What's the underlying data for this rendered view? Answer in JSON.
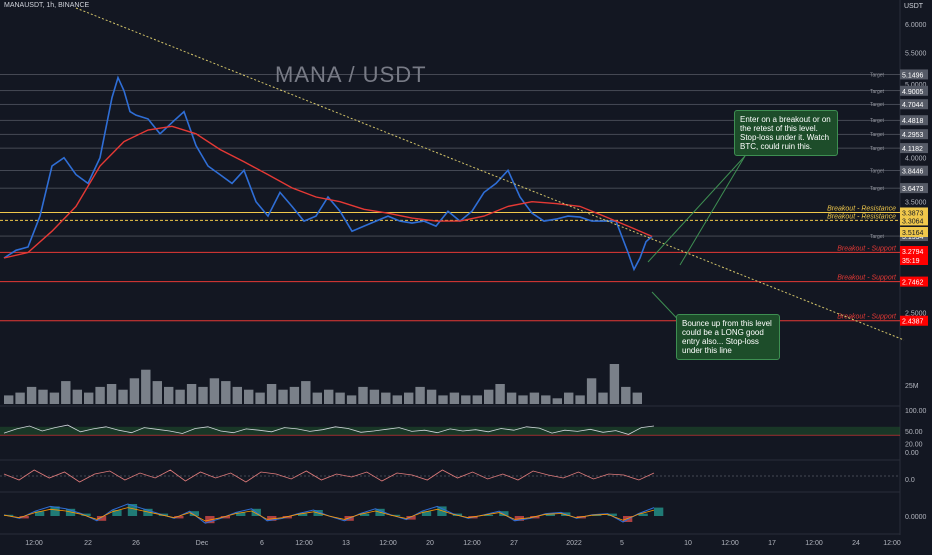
{
  "header": {
    "symbol": "MANAUSDT, 1h, BINANCE",
    "currency": "USDT"
  },
  "watermark": "MANA / USDT",
  "annotations": {
    "note_resistance": "Enter on a breakout or on the retest of this level. Stop-loss under it. Watch BTC, could ruin this.",
    "note_support": "Bounce up from this level could be a LONG good entry also... Stop-loss under this line"
  },
  "colors": {
    "background": "#131722",
    "price": "#2f6ed6",
    "ema": "#e53935",
    "resistance": "#f0c84b",
    "support": "#e53935",
    "trendline": "#d4c56a",
    "note_bg": "#1d4d2a",
    "target_line": "#787b86",
    "price_tag": "#ff0000",
    "label_tag": "#555a66",
    "volume_bars": "#7a8089",
    "rsi": "#d1d4dc",
    "osc": "#e07b7b",
    "macd_line": "#2f6ed6",
    "signal": "#ff9800"
  },
  "chart_data": [
    {
      "type": "line",
      "name": "price",
      "y_scale": "log",
      "ylim": [
        2.1,
        6.3
      ],
      "y_tick_labels": [
        "6.0000",
        "5.5000",
        "5.0000",
        "4.5000",
        "4.0000",
        "3.5000",
        "3.0000",
        "2.5000"
      ],
      "y_ticks": [
        6.0,
        5.5,
        5.0,
        4.5,
        4.0,
        3.5,
        3.0,
        2.5
      ],
      "x_tick_labels": [
        "12:00",
        "22",
        "26",
        "Dec",
        "6",
        "12:00",
        "13",
        "12:00",
        "20",
        "12:00",
        "27",
        "2022",
        "5",
        "10",
        "12:00",
        "17",
        "12:00",
        "24",
        "12:00"
      ],
      "x_tick_index": [
        5,
        14,
        22,
        33,
        43,
        50,
        57,
        64,
        71,
        78,
        85,
        95,
        103,
        114,
        121,
        128,
        135,
        142,
        148
      ],
      "x_range": [
        0,
        150
      ],
      "series": [
        {
          "kind": "price",
          "x": [
            0,
            2,
            4,
            6,
            8,
            10,
            12,
            14,
            16,
            18,
            19,
            20,
            21,
            22,
            24,
            26,
            28,
            30,
            32,
            34,
            36,
            38,
            40,
            42,
            44,
            46,
            48,
            50,
            52,
            54,
            56,
            58,
            60,
            62,
            64,
            66,
            68,
            70,
            72,
            74,
            76,
            78,
            80,
            82,
            84,
            86,
            88,
            90,
            92,
            94,
            96,
            98,
            100,
            102,
            104,
            105,
            106,
            107,
            108
          ],
          "y": [
            2.95,
            3.02,
            3.05,
            3.35,
            3.9,
            4.0,
            3.8,
            3.7,
            4.0,
            4.8,
            5.1,
            4.9,
            4.6,
            4.55,
            4.5,
            4.3,
            4.45,
            4.6,
            4.15,
            3.9,
            3.8,
            3.7,
            3.85,
            3.5,
            3.35,
            3.6,
            3.45,
            3.3,
            3.35,
            3.55,
            3.4,
            3.2,
            3.25,
            3.3,
            3.35,
            3.3,
            3.28,
            3.3,
            3.25,
            3.4,
            3.3,
            3.4,
            3.6,
            3.7,
            3.85,
            3.55,
            3.38,
            3.3,
            3.32,
            3.35,
            3.34,
            3.3,
            3.3,
            3.3,
            3.0,
            2.85,
            2.95,
            3.1,
            3.15
          ]
        },
        {
          "kind": "ema",
          "x": [
            0,
            4,
            8,
            12,
            16,
            20,
            24,
            28,
            32,
            36,
            40,
            44,
            48,
            52,
            56,
            60,
            64,
            68,
            72,
            76,
            80,
            84,
            88,
            92,
            96,
            100,
            104,
            108
          ],
          "y": [
            2.95,
            3.0,
            3.2,
            3.45,
            3.9,
            4.2,
            4.35,
            4.4,
            4.3,
            4.1,
            3.95,
            3.8,
            3.65,
            3.55,
            3.5,
            3.42,
            3.38,
            3.33,
            3.3,
            3.3,
            3.35,
            3.45,
            3.5,
            3.48,
            3.45,
            3.35,
            3.25,
            3.15
          ]
        },
        {
          "kind": "trendline",
          "x": [
            12,
            150
          ],
          "y": [
            6.3,
            2.3
          ]
        }
      ],
      "levels": [
        {
          "label": "Breakout - Resistance",
          "value": 3.3873,
          "style": "resistance"
        },
        {
          "label": "Breakout - Resistance",
          "value": 3.3064,
          "style": "resistance"
        },
        {
          "label": "Breakout - Support",
          "value": 3.0012,
          "style": "support"
        },
        {
          "label": "Breakout - Support",
          "value": 2.7462,
          "style": "support"
        },
        {
          "label": "Breakout - Support",
          "value": 2.4387,
          "style": "support"
        }
      ],
      "targets": [
        {
          "label": "Target",
          "value": 5.1496
        },
        {
          "label": "Target",
          "value": 4.9005
        },
        {
          "label": "Target",
          "value": 4.7044
        },
        {
          "label": "Target",
          "value": 4.4818
        },
        {
          "label": "Target",
          "value": 4.2953
        },
        {
          "label": "Target",
          "value": 4.1182
        },
        {
          "label": "Target",
          "value": 3.8446
        },
        {
          "label": "Target",
          "value": 3.6473
        },
        {
          "label": "Target",
          "value": 3.1534
        }
      ],
      "axis_tags": [
        {
          "text": "3.5164",
          "style": "resistance"
        },
        {
          "text": "3.2794",
          "style": "price"
        },
        {
          "text": "35:19",
          "style": "price"
        }
      ]
    },
    {
      "type": "bar",
      "name": "volume",
      "y_tick_labels": [
        "25M"
      ],
      "values": [
        3,
        4,
        6,
        5,
        4,
        8,
        5,
        4,
        6,
        7,
        5,
        9,
        12,
        8,
        6,
        5,
        7,
        6,
        9,
        8,
        6,
        5,
        4,
        7,
        5,
        6,
        8,
        4,
        5,
        4,
        3,
        6,
        5,
        4,
        3,
        4,
        6,
        5,
        3,
        4,
        3,
        3,
        5,
        7,
        4,
        3,
        4,
        3,
        2,
        4,
        3,
        9,
        4,
        14,
        6,
        4
      ]
    },
    {
      "type": "line",
      "name": "rsi",
      "y_tick_labels": [
        "100.00",
        "50.00",
        "20.00",
        "0.00"
      ],
      "ylim": [
        0,
        100
      ],
      "bands": [
        60,
        40
      ],
      "values": [
        45,
        55,
        62,
        50,
        58,
        64,
        48,
        55,
        60,
        52,
        46,
        58,
        54,
        50,
        44,
        56,
        60,
        50,
        46,
        55,
        52,
        48,
        58,
        55,
        49,
        53,
        60,
        56,
        47,
        50,
        54,
        58,
        49,
        52,
        46,
        55,
        50,
        53,
        48,
        56,
        52,
        60,
        57,
        45,
        52,
        49,
        54,
        47,
        51,
        42,
        58,
        62
      ]
    },
    {
      "type": "line",
      "name": "oscillator",
      "y_tick_labels": [
        "0.0"
      ],
      "values": [
        0.1,
        -0.2,
        0.3,
        -0.1,
        0.2,
        -0.3,
        0.1,
        0.25,
        -0.2,
        0.15,
        -0.1,
        0.3,
        -0.25,
        0.2,
        -0.1,
        0.15,
        -0.3,
        0.2,
        0.1,
        -0.15,
        0.25,
        -0.2,
        0.1,
        -0.05,
        0.2,
        -0.25,
        0.15,
        0.05,
        -0.2,
        0.3,
        -0.1,
        0.2,
        -0.15,
        0.1,
        -0.2,
        0.25,
        0.05,
        -0.1,
        0.2,
        -0.15,
        0.1,
        0.05,
        -0.2,
        0.15
      ]
    },
    {
      "type": "line",
      "name": "macd",
      "y_tick_labels": [
        "0.0000"
      ],
      "values": [
        0.05,
        -0.1,
        0.2,
        0.4,
        0.3,
        0.1,
        -0.2,
        0.25,
        0.5,
        0.3,
        0.1,
        -0.1,
        0.2,
        -0.3,
        -0.1,
        0.15,
        0.3,
        -0.2,
        -0.1,
        0.1,
        0.25,
        0.0,
        -0.2,
        0.1,
        0.3,
        0.05,
        -0.15,
        0.2,
        0.4,
        0.1,
        -0.1,
        0.05,
        0.2,
        -0.2,
        -0.1,
        0.1,
        0.15,
        -0.1,
        0.05,
        0.1,
        -0.25,
        0.1,
        0.35
      ]
    }
  ]
}
